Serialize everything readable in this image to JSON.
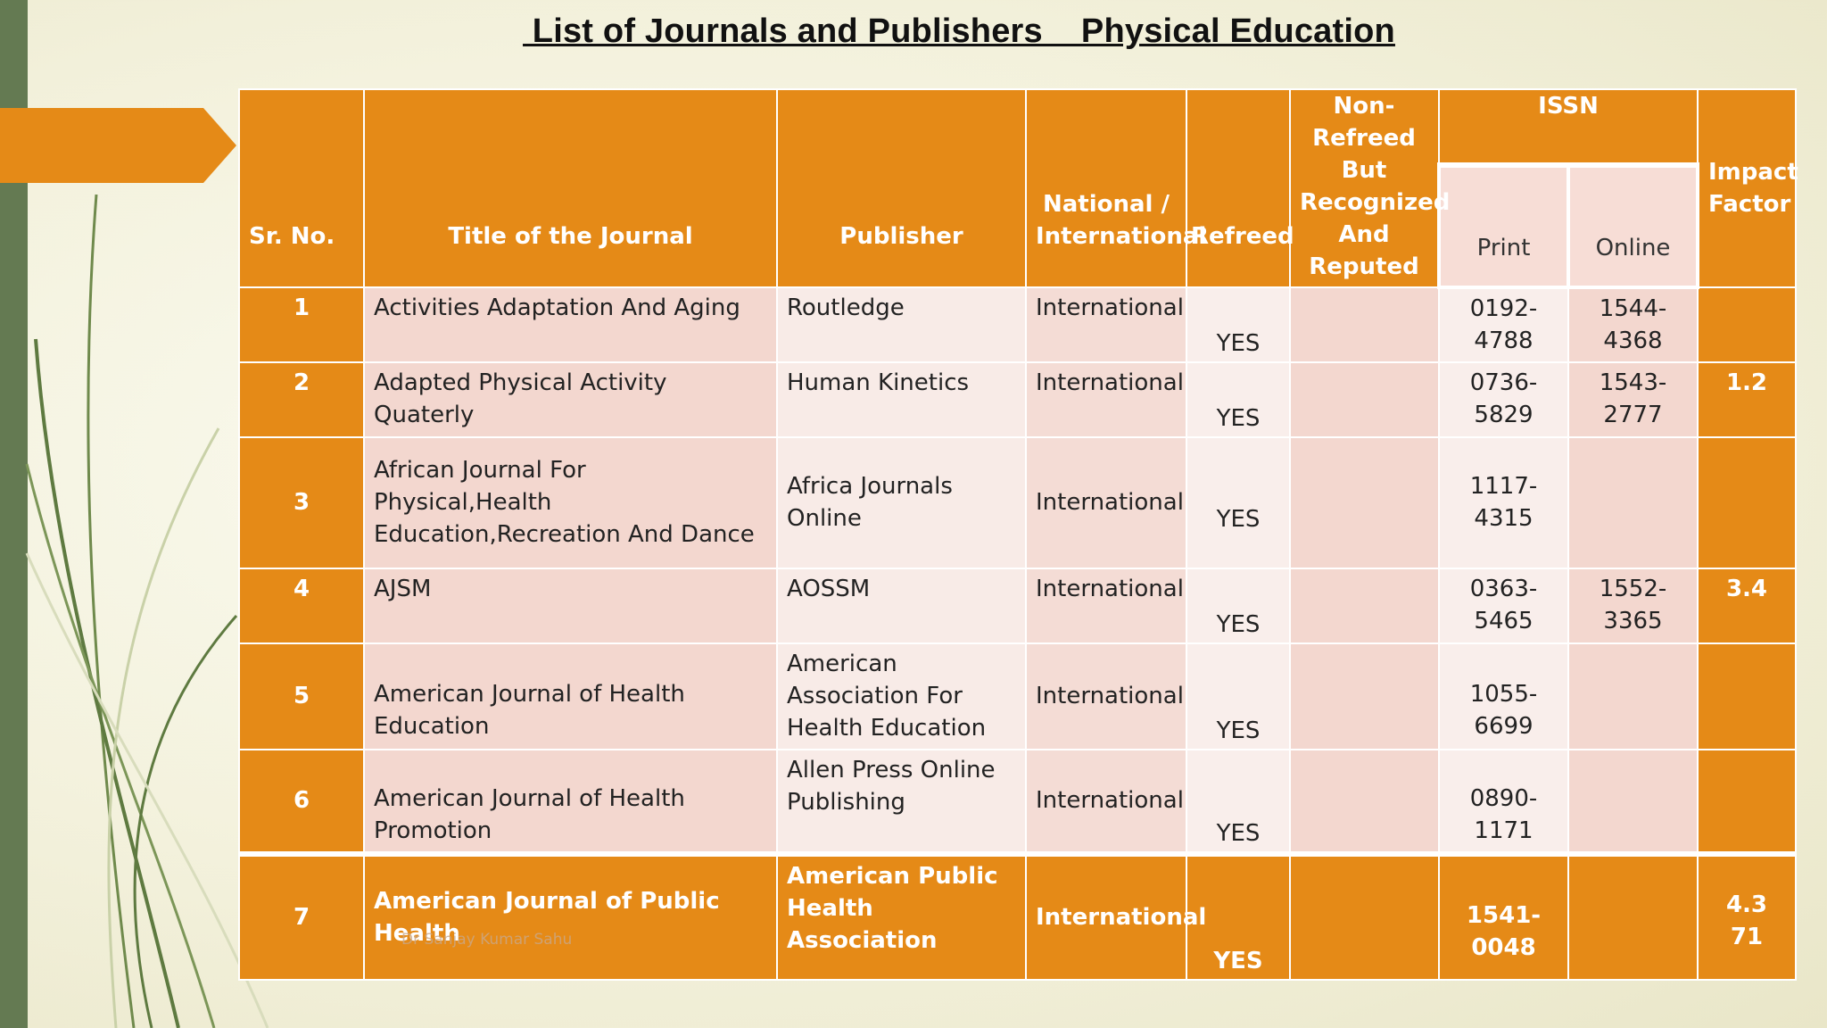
{
  "title": " List of Journals and Publishers    Physical Education",
  "table": {
    "headers": {
      "sr_no": "Sr. No.",
      "title": "Title of the Journal",
      "publisher": "Publisher",
      "national": "National / International",
      "refreed": "Refreed",
      "non_refreed": "Non-Refreed But Recognized And Reputed",
      "issn": "ISSN",
      "print": "Print",
      "online": "Online",
      "impact": "Impact Factor"
    },
    "rows": [
      {
        "sr": "1",
        "title": "Activities Adaptation And Aging",
        "publisher": "Routledge",
        "scope": "International",
        "refreed": "YES",
        "non_refreed": "",
        "print": "0192-4788",
        "online": "1544-4368",
        "impact": ""
      },
      {
        "sr": "2",
        "title": "Adapted Physical Activity Quaterly",
        "publisher": "Human Kinetics",
        "scope": "International",
        "refreed": "YES",
        "non_refreed": "",
        "print": "0736-5829",
        "online": "1543-2777",
        "impact": "1.2"
      },
      {
        "sr": "3",
        "title": "African Journal For Physical,Health Education,Recreation And Dance",
        "publisher": "Africa Journals Online",
        "scope": "International",
        "refreed": "YES",
        "non_refreed": "",
        "print": "1117-4315",
        "online": "",
        "impact": ""
      },
      {
        "sr": "4",
        "title": "AJSM",
        "publisher": "AOSSM",
        "scope": "International",
        "refreed": "YES",
        "non_refreed": "",
        "print": "0363-5465",
        "online": "1552-3365",
        "impact": "3.4"
      },
      {
        "sr": "5",
        "title": "American Journal of Health Education",
        "publisher": "American Association For Health Education",
        "scope": "International",
        "refreed": "YES",
        "non_refreed": "",
        "print": "1055-6699",
        "online": "",
        "impact": ""
      },
      {
        "sr": "6",
        "title": "American Journal of Health Promotion",
        "publisher": "Allen Press Online Publishing",
        "scope": "International",
        "refreed": "YES",
        "non_refreed": "",
        "print": "0890-1171",
        "online": "",
        "impact": ""
      },
      {
        "sr": "7",
        "title": "American Journal of Public Health",
        "publisher": "American Public Health Association",
        "scope": "International",
        "refreed": "YES",
        "non_refreed": "",
        "print": "1541-0048",
        "online": "",
        "impact": "4.371"
      }
    ]
  },
  "watermark": "Dr Sanjay Kumar Sahu",
  "colors": {
    "orange": "#e58a17",
    "sidebar_green": "#647a52",
    "vine_green": "#5e7a40"
  }
}
